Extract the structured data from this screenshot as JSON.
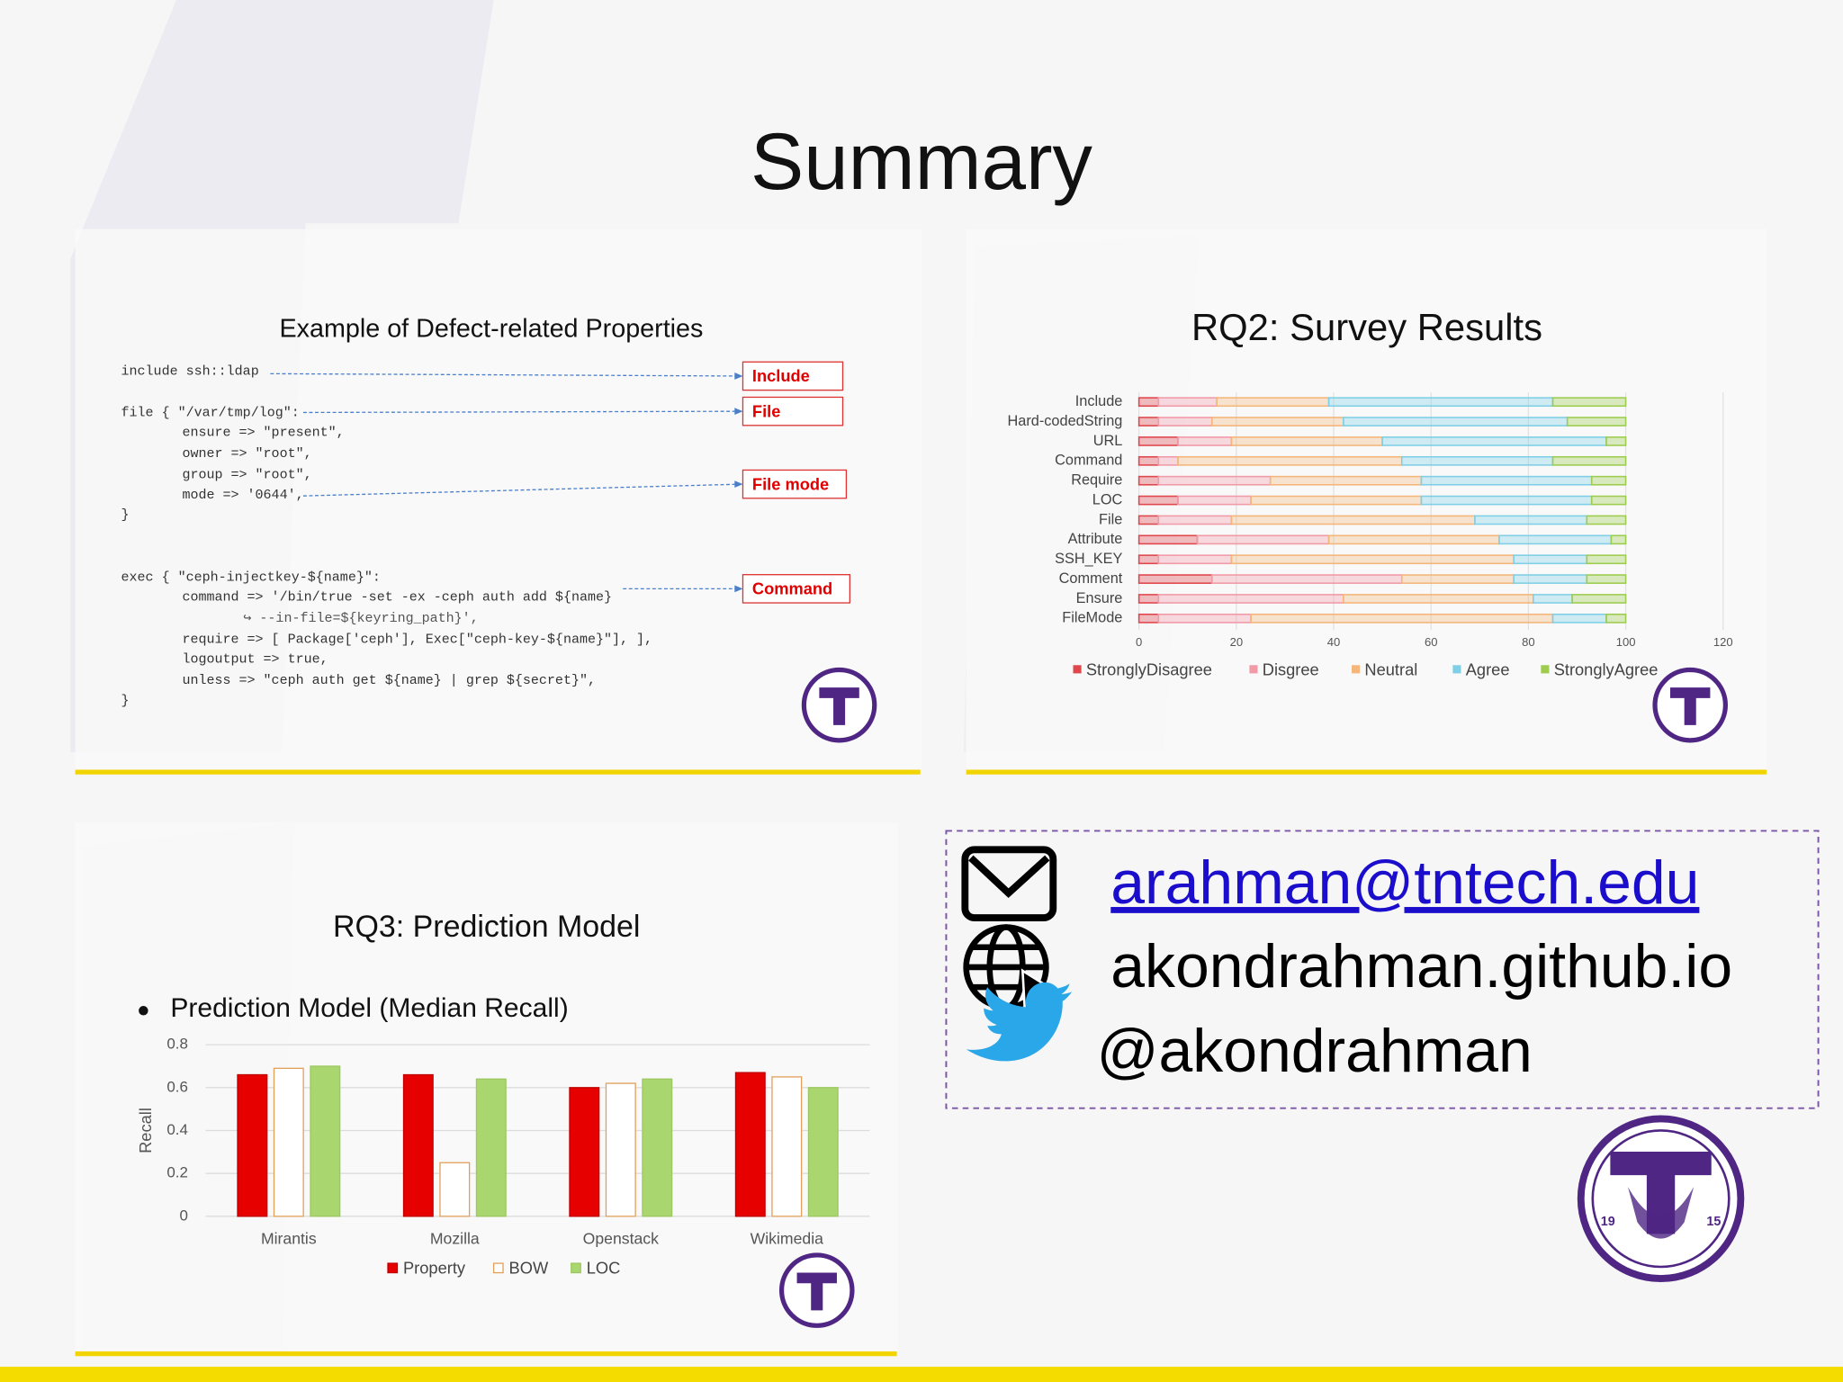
{
  "title": "Summary",
  "code_panel": {
    "title": "Example of Defect-related Properties",
    "lines": [
      "include ssh::ldap",
      "file { \"/var/tmp/log\":",
      "ensure => \"present\",",
      "owner => \"root\",",
      "group => \"root\",",
      "mode => '0644',",
      "}",
      "exec { \"ceph-injectkey-${name}\":",
      "command => '/bin/true -set -ex -ceph auth add ${name}",
      "↪ --in-file=${keyring_path}',",
      "require => [ Package['ceph'], Exec[\"ceph-key-${name}\"], ],",
      "logoutput => true,",
      "unless => \"ceph auth get ${name} | grep ${secret}\",",
      "}"
    ],
    "labels": [
      "Include",
      "File",
      "File mode",
      "Command"
    ]
  },
  "chart_data": [
    {
      "type": "stacked-barh",
      "title": "RQ2: Survey Results",
      "categories": [
        "Include",
        "Hard-codedString",
        "URL",
        "Command",
        "Require",
        "LOC",
        "File",
        "Attribute",
        "SSH_KEY",
        "Comment",
        "Ensure",
        "FileMode"
      ],
      "series": [
        {
          "name": "StronglyDisagree",
          "color": "#e0474c",
          "values": [
            4,
            4,
            8,
            4,
            4,
            8,
            4,
            12,
            4,
            15,
            4,
            4
          ]
        },
        {
          "name": "Disgree",
          "color": "#f19aa8",
          "values": [
            12,
            11,
            11,
            4,
            23,
            15,
            15,
            27,
            15,
            39,
            38,
            19
          ]
        },
        {
          "name": "Neutral",
          "color": "#f4b67a",
          "values": [
            23,
            27,
            31,
            46,
            31,
            35,
            50,
            35,
            58,
            23,
            39,
            62
          ]
        },
        {
          "name": "Agree",
          "color": "#7fcfe6",
          "values": [
            46,
            46,
            46,
            31,
            35,
            35,
            23,
            23,
            15,
            15,
            8,
            11
          ]
        },
        {
          "name": "StronglyAgree",
          "color": "#9dcc4f",
          "values": [
            15,
            12,
            4,
            15,
            7,
            7,
            8,
            3,
            8,
            8,
            11,
            4
          ]
        }
      ],
      "xlim": [
        0,
        120
      ],
      "xticks": [
        0,
        20,
        40,
        60,
        80,
        100,
        120
      ],
      "grid": true,
      "legend": "bottom"
    },
    {
      "type": "bar",
      "title": "RQ3: Prediction Model",
      "subtitle": "Prediction Model (Median Recall)",
      "ylabel": "Recall",
      "categories": [
        "Mirantis",
        "Mozilla",
        "Openstack",
        "Wikimedia"
      ],
      "series": [
        {
          "name": "Property",
          "color": "#e60000",
          "edge_color": "#c00000",
          "values": [
            0.66,
            0.66,
            0.6,
            0.67
          ]
        },
        {
          "name": "BOW",
          "color": "#ffffff",
          "edge_color": "#e2a05b",
          "values": [
            0.69,
            0.25,
            0.62,
            0.65
          ]
        },
        {
          "name": "LOC",
          "color": "#a9d66e",
          "edge_color": "#9dc85f",
          "values": [
            0.7,
            0.64,
            0.64,
            0.6
          ]
        }
      ],
      "ylim": [
        0,
        0.8
      ],
      "yticks": [
        0,
        0.2,
        0.4,
        0.6,
        0.8
      ],
      "grid": true,
      "legend": "bottom"
    }
  ],
  "contact": {
    "email": "arahman@tntech.edu",
    "website": "akondrahman.github.io",
    "twitter": "@akondrahman"
  },
  "logo": {
    "year_left": "19",
    "year_right": "15"
  }
}
